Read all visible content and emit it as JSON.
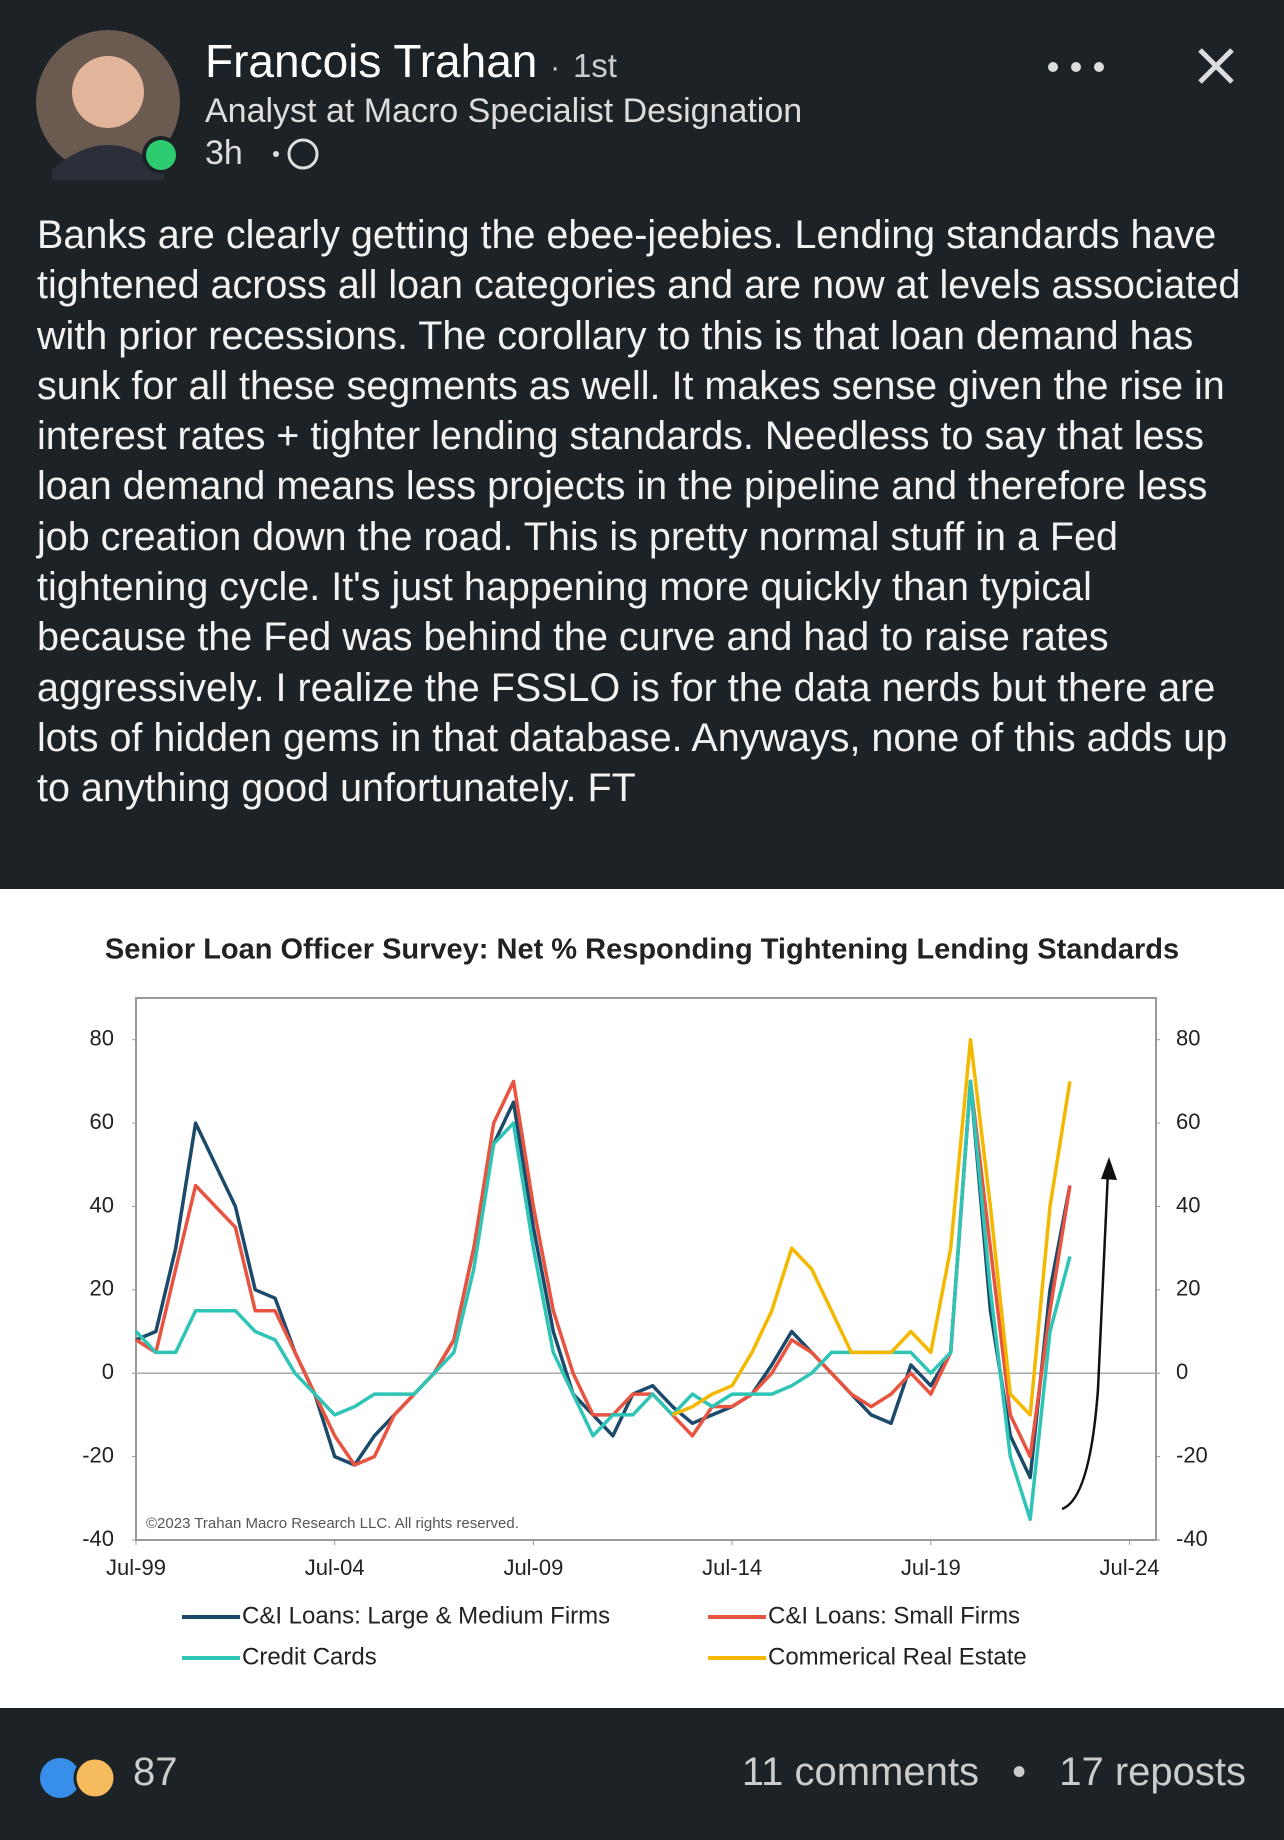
{
  "header": {
    "name": "Francois Trahan",
    "degree": "1st",
    "headline": "Analyst at Macro Specialist Designation",
    "time": "3h"
  },
  "post": {
    "text": "Banks are clearly getting the ebee-jeebies. Lending standards have tightened across all loan categories and are now at levels associated with prior recessions. The corollary to this is that loan demand has sunk for all these segments as well. It makes sense given the rise in interest rates + tighter lending standards. Needless to say that less loan demand means less projects in the pipeline and therefore less job creation down the road. This is pretty normal stuff in a Fed tightening cycle. It's just happening more quickly than typical because the Fed was behind the curve and had to raise rates aggressively. I realize the FSSLO is for the data nerds but there are lots of hidden gems in that database. Anyways, none of this adds up to anything good unfortunately. FT"
  },
  "chart_data": {
    "type": "line",
    "title": "Senior Loan Officer Survey: Net % Responding Tightening Lending Standards",
    "annotation": "©2023 Trahan Macro Research LLC. All rights reserved.",
    "x": [
      "1999-07",
      "2000-01",
      "2000-07",
      "2001-01",
      "2001-07",
      "2002-01",
      "2002-07",
      "2003-01",
      "2003-07",
      "2004-01",
      "2004-07",
      "2005-01",
      "2005-07",
      "2006-01",
      "2006-07",
      "2007-01",
      "2007-07",
      "2008-01",
      "2008-07",
      "2009-01",
      "2009-07",
      "2010-01",
      "2010-07",
      "2011-01",
      "2011-07",
      "2012-01",
      "2012-07",
      "2013-01",
      "2013-07",
      "2014-01",
      "2014-07",
      "2015-01",
      "2015-07",
      "2016-01",
      "2016-07",
      "2017-01",
      "2017-07",
      "2018-01",
      "2018-07",
      "2019-01",
      "2019-07",
      "2020-01",
      "2020-07",
      "2021-01",
      "2021-07",
      "2022-01",
      "2022-07",
      "2023-01"
    ],
    "series": [
      {
        "name": "C&I Loans: Large & Medium Firms",
        "color": "#1b4a6b",
        "values": [
          8,
          10,
          30,
          60,
          50,
          40,
          20,
          18,
          5,
          -5,
          -20,
          -22,
          -15,
          -10,
          -5,
          0,
          8,
          30,
          55,
          65,
          35,
          10,
          -5,
          -10,
          -15,
          -5,
          -3,
          -8,
          -12,
          -10,
          -8,
          -5,
          2,
          10,
          5,
          0,
          -5,
          -10,
          -12,
          2,
          -3,
          5,
          70,
          15,
          -15,
          -25,
          20,
          45
        ]
      },
      {
        "name": "C&I Loans: Small Firms",
        "color": "#e8543f",
        "values": [
          8,
          5,
          25,
          45,
          40,
          35,
          15,
          15,
          5,
          -5,
          -15,
          -22,
          -20,
          -10,
          -5,
          0,
          8,
          30,
          60,
          70,
          40,
          15,
          0,
          -10,
          -10,
          -5,
          -5,
          -10,
          -15,
          -8,
          -8,
          -5,
          0,
          8,
          5,
          0,
          -5,
          -8,
          -5,
          0,
          -5,
          5,
          70,
          30,
          -10,
          -20,
          15,
          45
        ]
      },
      {
        "name": "Credit Cards",
        "color": "#2ec4b6",
        "values": [
          10,
          5,
          5,
          15,
          15,
          15,
          10,
          8,
          0,
          -5,
          -10,
          -8,
          -5,
          -5,
          -5,
          0,
          5,
          25,
          55,
          60,
          30,
          5,
          -5,
          -15,
          -10,
          -10,
          -5,
          -10,
          -5,
          -8,
          -5,
          -5,
          -5,
          -3,
          0,
          5,
          5,
          5,
          5,
          5,
          0,
          5,
          70,
          20,
          -20,
          -35,
          10,
          28
        ]
      },
      {
        "name": "Commerical Real Estate",
        "color": "#f5b800",
        "values": [
          null,
          null,
          null,
          null,
          null,
          null,
          null,
          null,
          null,
          null,
          null,
          null,
          null,
          null,
          null,
          null,
          null,
          null,
          null,
          null,
          null,
          null,
          null,
          null,
          null,
          null,
          null,
          -10,
          -8,
          -5,
          -3,
          5,
          15,
          30,
          25,
          15,
          5,
          5,
          5,
          10,
          5,
          30,
          80,
          40,
          -5,
          -10,
          40,
          70
        ]
      }
    ],
    "xlim": [
      "1999-07",
      "2025-03"
    ],
    "xticks": [
      {
        "value": "1999-07",
        "label": "Jul-99"
      },
      {
        "value": "2004-07",
        "label": "Jul-04"
      },
      {
        "value": "2009-07",
        "label": "Jul-09"
      },
      {
        "value": "2014-07",
        "label": "Jul-14"
      },
      {
        "value": "2019-07",
        "label": "Jul-19"
      },
      {
        "value": "2024-07",
        "label": "Jul-24"
      }
    ],
    "ylim": [
      -40,
      90
    ],
    "yticks": [
      -40,
      -20,
      0,
      20,
      40,
      60,
      80
    ],
    "y2lim": [
      -40,
      90
    ],
    "y2ticks": [
      -40,
      -20,
      0,
      20,
      40,
      60,
      80
    ],
    "grid": false
  },
  "footer": {
    "reactions": "87",
    "comments": "11 comments",
    "reposts": "17 reposts"
  }
}
